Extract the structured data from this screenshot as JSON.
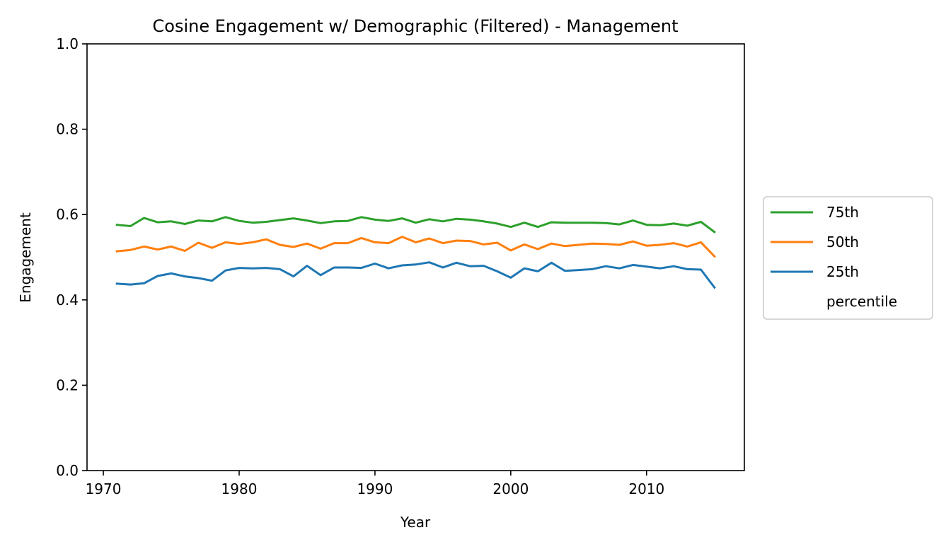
{
  "chart_data": {
    "type": "line",
    "title": "Cosine Engagement w/ Demographic (Filtered) - Management",
    "xlabel": "Year",
    "ylabel": "Engagement",
    "xlim": [
      1968.8,
      2017.2
    ],
    "ylim": [
      0.0,
      1.0
    ],
    "xticks": [
      1970,
      1980,
      1990,
      2000,
      2010
    ],
    "xtick_labels": [
      "1970",
      "1980",
      "1990",
      "2000",
      "2010"
    ],
    "yticks": [
      0.0,
      0.2,
      0.4,
      0.6,
      0.8,
      1.0
    ],
    "ytick_labels": [
      "0.0",
      "0.2",
      "0.4",
      "0.6",
      "0.8",
      "1.0"
    ],
    "grid": false,
    "legend_position": "center-right-outside",
    "legend_footer": "percentile",
    "x": [
      1971,
      1972,
      1973,
      1974,
      1975,
      1976,
      1977,
      1978,
      1979,
      1980,
      1981,
      1982,
      1983,
      1984,
      1985,
      1986,
      1987,
      1988,
      1989,
      1990,
      1991,
      1992,
      1993,
      1994,
      1995,
      1996,
      1997,
      1998,
      1999,
      2000,
      2001,
      2002,
      2003,
      2004,
      2005,
      2006,
      2007,
      2008,
      2009,
      2010,
      2011,
      2012,
      2013,
      2014,
      2015
    ],
    "series": [
      {
        "name": "75th",
        "color": "#2ca02c",
        "values": [
          0.576,
          0.573,
          0.592,
          0.582,
          0.584,
          0.578,
          0.586,
          0.584,
          0.594,
          0.585,
          0.581,
          0.583,
          0.587,
          0.591,
          0.586,
          0.58,
          0.584,
          0.585,
          0.594,
          0.588,
          0.585,
          0.591,
          0.581,
          0.589,
          0.584,
          0.59,
          0.588,
          0.584,
          0.579,
          0.571,
          0.581,
          0.571,
          0.582,
          0.581,
          0.581,
          0.581,
          0.58,
          0.577,
          0.586,
          0.576,
          0.575,
          0.579,
          0.574,
          0.583,
          0.559
        ]
      },
      {
        "name": "50th",
        "color": "#ff7f0e",
        "values": [
          0.514,
          0.517,
          0.525,
          0.518,
          0.525,
          0.515,
          0.534,
          0.522,
          0.535,
          0.531,
          0.535,
          0.542,
          0.529,
          0.524,
          0.532,
          0.52,
          0.533,
          0.533,
          0.545,
          0.535,
          0.533,
          0.548,
          0.535,
          0.544,
          0.533,
          0.539,
          0.538,
          0.53,
          0.534,
          0.516,
          0.53,
          0.519,
          0.532,
          0.526,
          0.529,
          0.532,
          0.531,
          0.529,
          0.537,
          0.527,
          0.529,
          0.533,
          0.525,
          0.535,
          0.502
        ]
      },
      {
        "name": "25th",
        "color": "#1f77b4",
        "values": [
          0.438,
          0.436,
          0.439,
          0.456,
          0.462,
          0.455,
          0.451,
          0.445,
          0.469,
          0.475,
          0.474,
          0.475,
          0.472,
          0.455,
          0.48,
          0.458,
          0.476,
          0.476,
          0.475,
          0.485,
          0.474,
          0.481,
          0.483,
          0.488,
          0.476,
          0.487,
          0.479,
          0.48,
          0.467,
          0.452,
          0.474,
          0.467,
          0.487,
          0.468,
          0.47,
          0.472,
          0.479,
          0.474,
          0.482,
          0.478,
          0.474,
          0.479,
          0.472,
          0.471,
          0.429
        ]
      }
    ]
  }
}
